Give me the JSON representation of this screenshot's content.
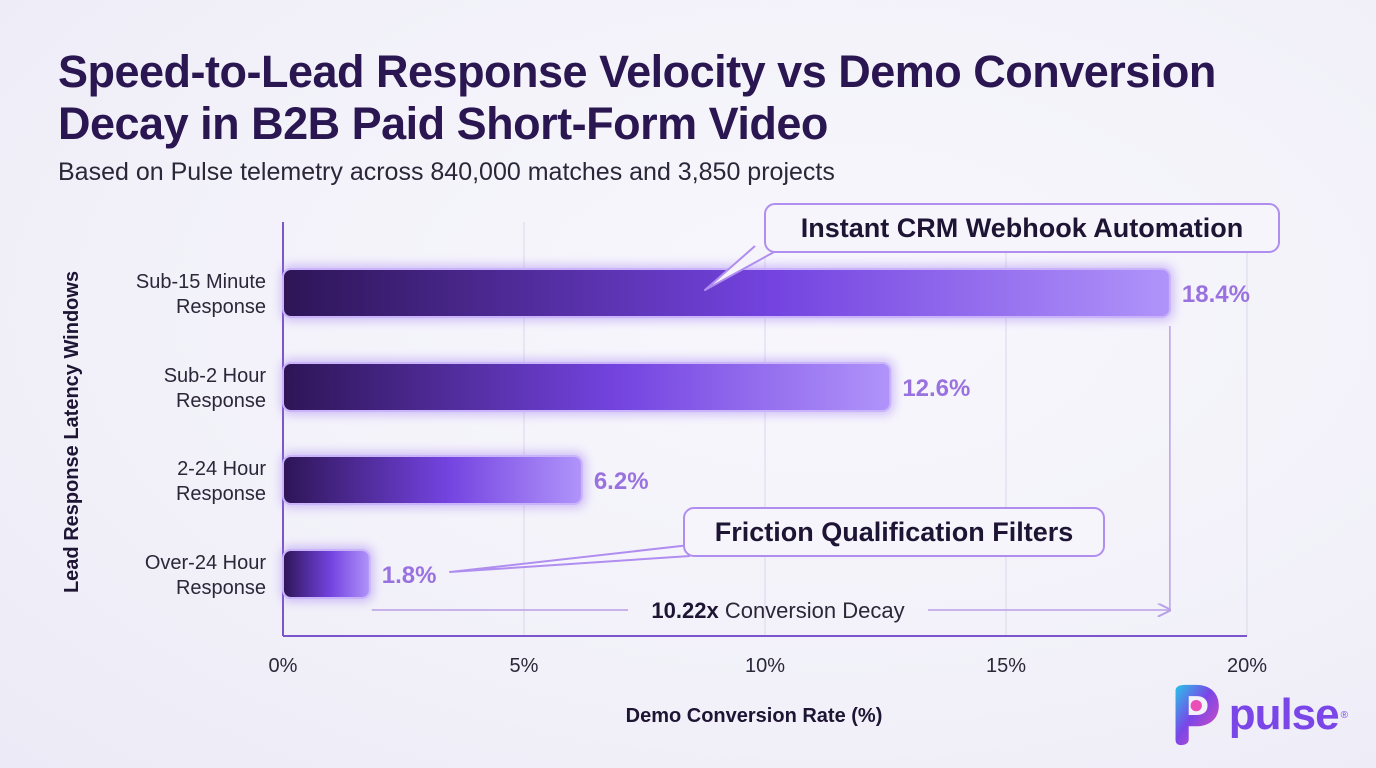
{
  "title": "Speed-to-Lead Response Velocity vs Demo Conversion Decay in B2B Paid Short-Form Video",
  "subtitle": "Based on Pulse telemetry across 840,000 matches and 3,850 projects",
  "brand": {
    "name": "pulse",
    "mark": "®"
  },
  "colors": {
    "bar_dark": "#2e1659",
    "bar_light": "#a98cf8",
    "accent": "#7b49e6",
    "label": "#9a72e0"
  },
  "chart_data": {
    "type": "bar",
    "orientation": "horizontal",
    "categories": [
      [
        "Sub-15 Minute",
        "Response"
      ],
      [
        "Sub-2 Hour",
        "Response"
      ],
      [
        "2-24 Hour",
        "Response"
      ],
      [
        "Over-24 Hour",
        "Response"
      ]
    ],
    "values": [
      18.4,
      12.6,
      6.2,
      1.8
    ],
    "value_labels": [
      "18.4%",
      "12.6%",
      "6.2%",
      "1.8%"
    ],
    "xlabel": "Demo Conversion Rate (%)",
    "ylabel": "Lead Response Latency Windows",
    "xlim": [
      0,
      20
    ],
    "xticks": [
      0,
      5,
      10,
      15,
      20
    ],
    "xtick_labels": [
      "0%",
      "5%",
      "10%",
      "15%",
      "20%"
    ],
    "grid": "vertical",
    "annotations": [
      {
        "text": "Instant CRM Webhook Automation",
        "target_category": 0
      },
      {
        "text": "Friction Qualification Filters",
        "target_category": 3
      }
    ],
    "decay": {
      "bold": "10.22x",
      "text": " Conversion Decay",
      "from_value": 1.8,
      "to_value": 18.4
    }
  }
}
